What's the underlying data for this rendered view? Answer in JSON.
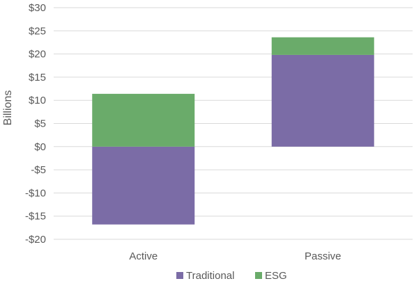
{
  "chart_data": {
    "type": "bar",
    "stacked": true,
    "categories": [
      "Active",
      "Passive"
    ],
    "series": [
      {
        "name": "Traditional",
        "values": [
          -16.8,
          19.8
        ],
        "color": "#7b6ca6"
      },
      {
        "name": "ESG",
        "values": [
          11.4,
          3.8
        ],
        "color": "#6aab6a"
      }
    ],
    "ylabel": "Billions",
    "ylim": [
      -20,
      30
    ],
    "yticks": [
      30,
      25,
      20,
      15,
      10,
      5,
      0,
      -5,
      -10,
      -15,
      -20
    ],
    "ytick_labels": [
      "$30",
      "$25",
      "$20",
      "$15",
      "$10",
      "$5",
      "$0",
      "-$5",
      "-$10",
      "-$15",
      "-$20"
    ],
    "grid": true,
    "legend": "bottom"
  }
}
